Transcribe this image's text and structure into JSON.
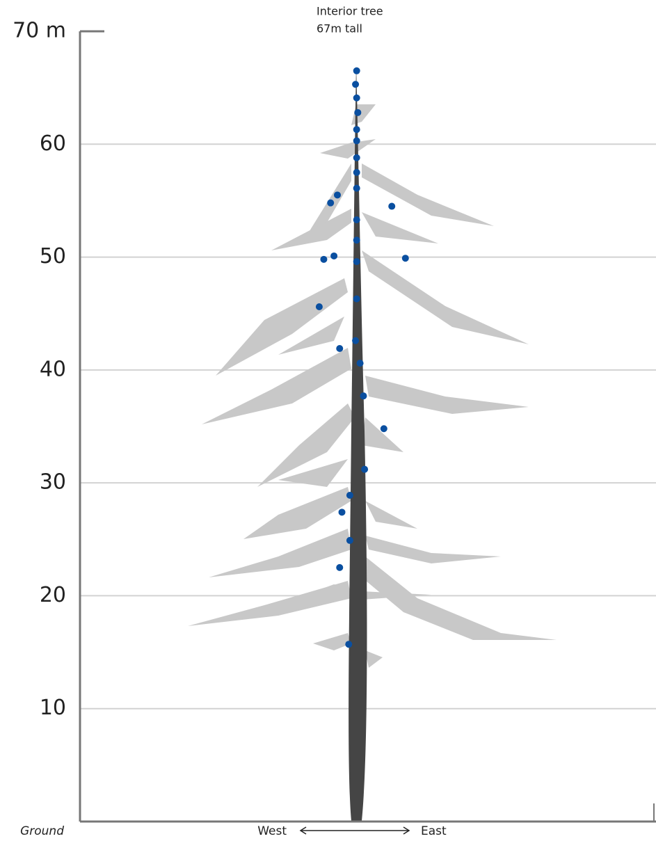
{
  "chart_data": {
    "type": "scatter",
    "title": "Interior tree",
    "subtitle": "67m tall",
    "x_labels": {
      "left": "West",
      "right": "East"
    },
    "xlim": [
      -24.4,
      26.4
    ],
    "ylim": [
      0,
      70
    ],
    "yticks": [
      {
        "value": 0,
        "label": "Ground"
      },
      10,
      20,
      30,
      40,
      50,
      60,
      {
        "value": 70,
        "label": "70 m"
      }
    ],
    "grid": true,
    "series": [
      {
        "color": "#0a4fa0",
        "x": [
          0,
          -0.1,
          0,
          0.1,
          0,
          0,
          0,
          0,
          0,
          -2.3,
          -1.7,
          3.1,
          0,
          0,
          -2.9,
          -2.0,
          0,
          4.3,
          0,
          -3.3,
          -0.1,
          -1.5,
          0.3,
          0.6,
          2.4,
          0.7,
          -0.6,
          -1.3,
          -0.6,
          -1.5,
          -0.7
        ],
        "values": [
          66.5,
          65.3,
          64.1,
          62.8,
          61.3,
          60.3,
          58.8,
          57.5,
          56.1,
          54.8,
          55.5,
          54.5,
          53.3,
          51.5,
          49.8,
          50.1,
          49.6,
          49.9,
          46.3,
          45.6,
          42.6,
          41.9,
          40.6,
          37.7,
          34.8,
          31.2,
          28.9,
          27.4,
          24.9,
          22.5,
          15.7
        ]
      }
    ]
  }
}
